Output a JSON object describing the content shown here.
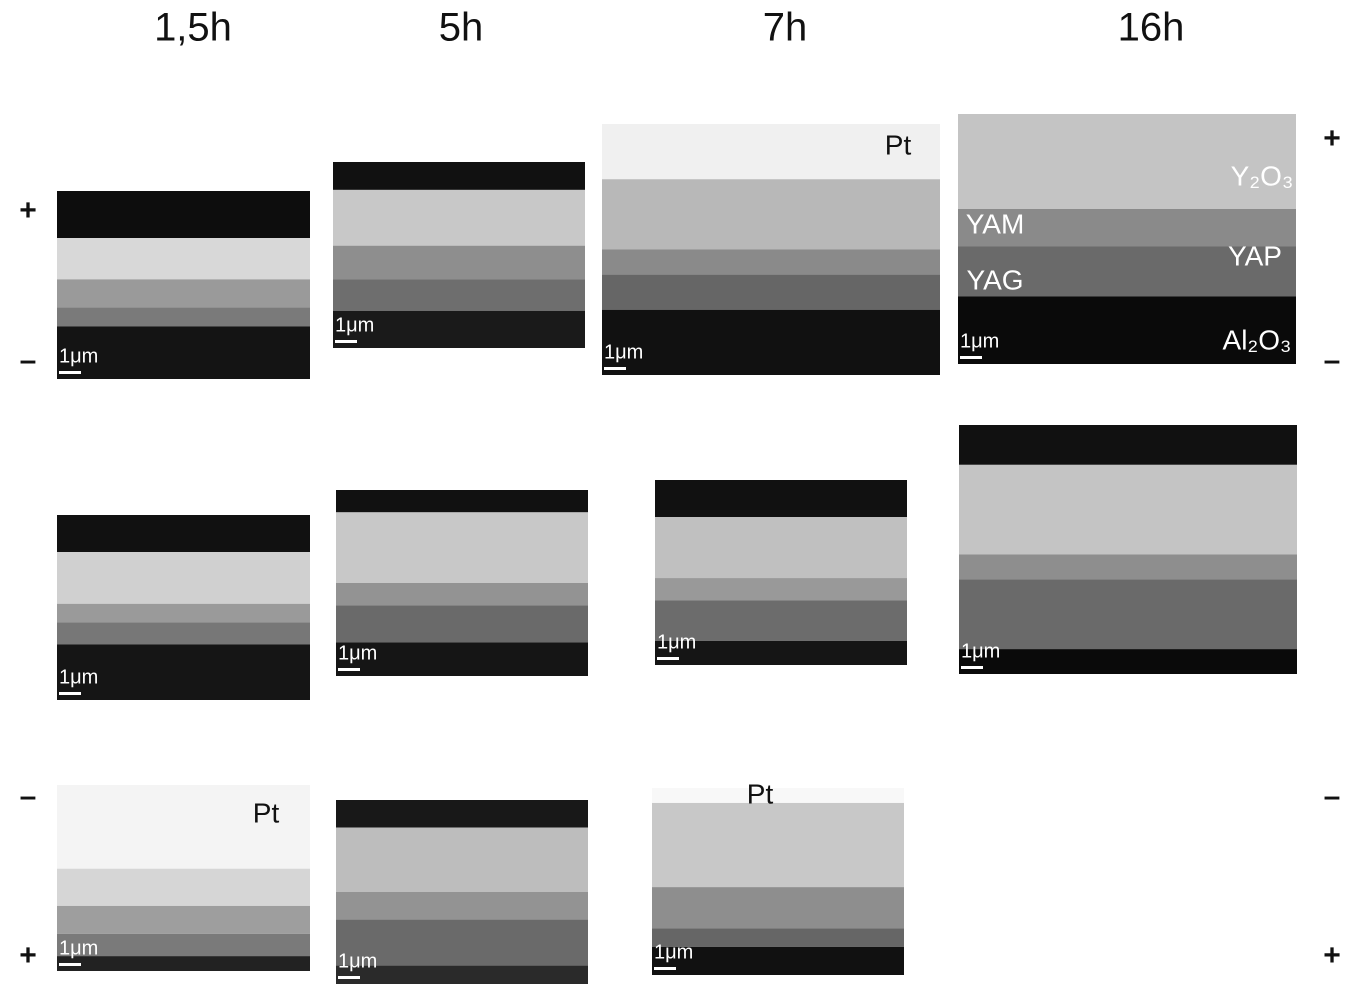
{
  "column_headers": [
    "1,5h",
    "5h",
    "7h",
    "16h"
  ],
  "polarity": {
    "left": [
      "+",
      "–",
      "–",
      "+"
    ],
    "right": [
      "+",
      "–",
      "–",
      "+"
    ]
  },
  "panels": [
    [
      {
        "scale_bar": "1μm",
        "labels": []
      },
      {
        "scale_bar": "1μm",
        "labels": []
      },
      {
        "scale_bar": "1μm",
        "labels": [
          "Pt"
        ]
      },
      {
        "scale_bar": "1μm",
        "labels": [
          "Y₂O₃",
          "YAM",
          "YAP",
          "YAG",
          "Al₂O₃"
        ]
      }
    ],
    [
      {
        "scale_bar": "1μm",
        "labels": []
      },
      {
        "scale_bar": "1μm",
        "labels": []
      },
      {
        "scale_bar": "1μm",
        "labels": []
      },
      {
        "scale_bar": "1μm",
        "labels": []
      }
    ],
    [
      {
        "scale_bar": "1μm",
        "labels": [
          "Pt"
        ]
      },
      {
        "scale_bar": "1μm",
        "labels": []
      },
      {
        "scale_bar": "1μm",
        "labels": [
          "Pt"
        ]
      }
    ]
  ]
}
